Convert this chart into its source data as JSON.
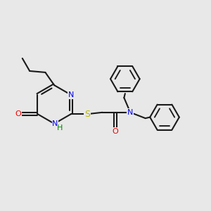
{
  "bg_color": "#e8e8e8",
  "bond_color": "#1a1a1a",
  "bond_lw": 1.5,
  "dbl_off": 0.055,
  "atom_colors": {
    "N": "#0000ee",
    "O": "#ee0000",
    "S": "#b8b800",
    "NH_H": "#008800"
  },
  "fs": 8.0,
  "figsize": [
    3.0,
    3.0
  ],
  "dpi": 100
}
